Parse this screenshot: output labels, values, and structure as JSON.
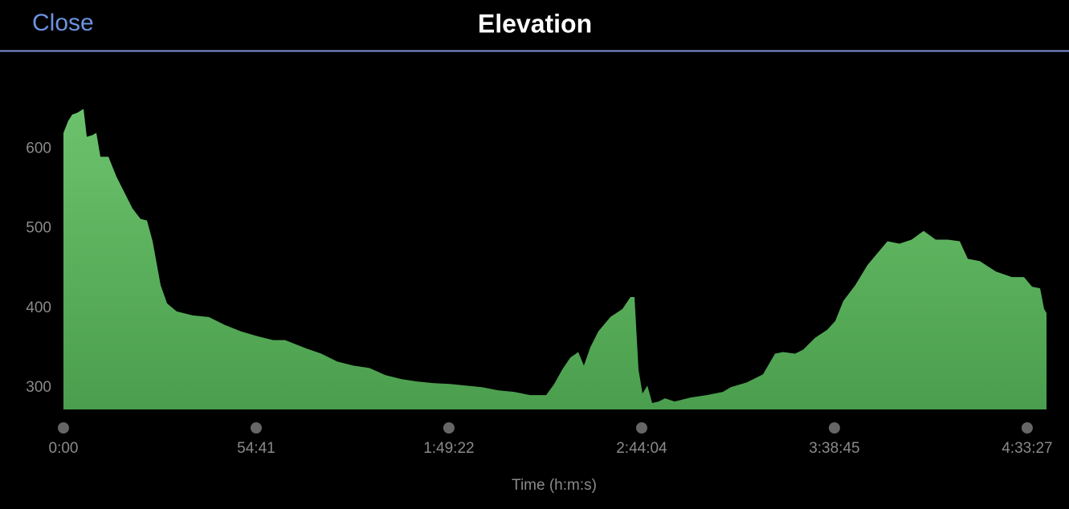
{
  "header": {
    "close": "Close",
    "title": "Elevation"
  },
  "chart_data": {
    "type": "area",
    "color": "#5cb35e",
    "x": [
      0,
      82,
      150,
      232,
      342,
      397,
      492,
      560,
      629,
      766,
      902,
      1039,
      1176,
      1312,
      1422,
      1518,
      1654,
      1764,
      1928,
      2201,
      2475,
      2748,
      3022,
      3295,
      3569,
      3774,
      4116,
      4389,
      4663,
      4936,
      5209,
      5483,
      5756,
      6030,
      6303,
      6577,
      6850,
      7124,
      7397,
      7671,
      7944,
      8218,
      8355,
      8491,
      8628,
      8764,
      8860,
      8970,
      9106,
      9311,
      9516,
      9653,
      9722,
      9790,
      9858,
      9941,
      10023,
      10132,
      10241,
      10405,
      10679,
      10952,
      11226,
      11362,
      11636,
      11909,
      12114,
      12251,
      12456,
      12593,
      12798,
      13003,
      13140,
      13276,
      13481,
      13687,
      13892,
      14028,
      14234,
      14439,
      14644,
      14849,
      15054,
      15259,
      15396,
      15601,
      15875,
      16148,
      16353,
      16490,
      16627,
      16695,
      16736
    ],
    "y": [
      620,
      635,
      643,
      645,
      650,
      615,
      617,
      620,
      590,
      590,
      565,
      545,
      525,
      512,
      510,
      484,
      429,
      406,
      396,
      391,
      389,
      379,
      371,
      365,
      360,
      360,
      350,
      343,
      333,
      328,
      325,
      316,
      311,
      308,
      306,
      305,
      303,
      301,
      297,
      295,
      291,
      291,
      305,
      323,
      338,
      345,
      328,
      351,
      371,
      389,
      399,
      414,
      414,
      323,
      293,
      303,
      281,
      283,
      287,
      283,
      288,
      291,
      295,
      301,
      307,
      317,
      343,
      345,
      343,
      348,
      363,
      373,
      384,
      409,
      429,
      454,
      472,
      484,
      481,
      486,
      497,
      486,
      486,
      484,
      462,
      459,
      446,
      439,
      439,
      427,
      425,
      399,
      394
    ],
    "xlim": [
      0,
      16736
    ],
    "ylim": [
      273,
      700
    ],
    "xticks": [
      {
        "value": 0,
        "label": "0:00"
      },
      {
        "value": 3281,
        "label": "54:41"
      },
      {
        "value": 6562,
        "label": "1:49:22"
      },
      {
        "value": 9844,
        "label": "2:44:04"
      },
      {
        "value": 13125,
        "label": "3:38:45"
      },
      {
        "value": 16407,
        "label": "4:33:27"
      }
    ],
    "yticks": [
      300,
      400,
      500,
      600
    ],
    "xlabel": "Time (h:m:s)"
  }
}
